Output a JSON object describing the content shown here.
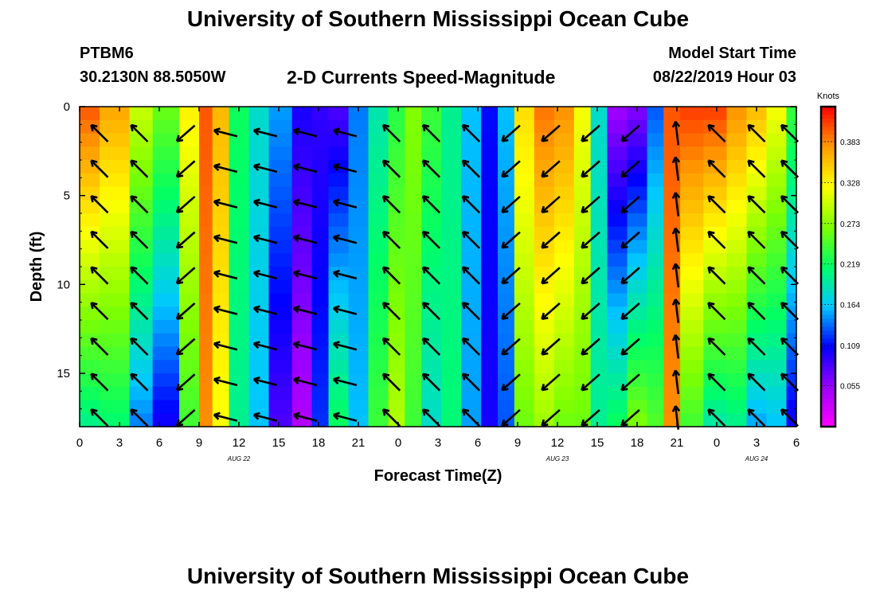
{
  "header": {
    "title": "University of Southern Mississippi Ocean Cube",
    "station": "PTBM6",
    "coords": "30.2130N 88.5050W",
    "subtitle": "2-D Currents Speed-Magnitude",
    "model_start_label": "Model Start Time",
    "model_start_value": "08/22/2019 Hour 03"
  },
  "footer": {
    "title": "University of Southern Mississippi Ocean Cube"
  },
  "chart_data": {
    "type": "heatmap",
    "title": "2-D Currents Speed-Magnitude",
    "xlabel": "Forecast Time(Z)",
    "ylabel": "Depth (ft)",
    "x_tick_labels": [
      "0",
      "3",
      "6",
      "9",
      "12",
      "15",
      "18",
      "21",
      "0",
      "3",
      "6",
      "9",
      "12",
      "15",
      "18",
      "21",
      "0",
      "3",
      "6"
    ],
    "x_range_hours": [
      0,
      54
    ],
    "date_labels": [
      {
        "label": "AUG 22",
        "hour": 12
      },
      {
        "label": "AUG 23",
        "hour": 36
      },
      {
        "label": "AUG 24",
        "hour": 51
      }
    ],
    "y_ticks": [
      0,
      5,
      10,
      15
    ],
    "ylim": [
      0,
      18
    ],
    "colorbar": {
      "label": "Knots",
      "ticks": [
        0.055,
        0.109,
        0.164,
        0.219,
        0.273,
        0.328,
        0.383
      ],
      "range": [
        0,
        0.43
      ],
      "colors": [
        "#ff00ff",
        "#9900ff",
        "#0000ff",
        "#00c8ff",
        "#00ff66",
        "#80ff00",
        "#ffff00",
        "#ff9900",
        "#ff0000"
      ]
    },
    "speed_profile_by_column": [
      {
        "hour": 0,
        "surface": 0.4,
        "bottom": 0.2
      },
      {
        "hour": 3,
        "surface": 0.37,
        "bottom": 0.21
      },
      {
        "hour": 4.5,
        "surface": 0.3,
        "bottom": 0.14
      },
      {
        "hour": 6.5,
        "surface": 0.26,
        "bottom": 0.1
      },
      {
        "hour": 8.5,
        "surface": 0.33,
        "bottom": 0.24
      },
      {
        "hour": 9.5,
        "surface": 0.4,
        "bottom": 0.38
      },
      {
        "hour": 10.5,
        "surface": 0.36,
        "bottom": 0.32
      },
      {
        "hour": 12,
        "surface": 0.22,
        "bottom": 0.2
      },
      {
        "hour": 13.5,
        "surface": 0.18,
        "bottom": 0.16
      },
      {
        "hour": 15,
        "surface": 0.15,
        "bottom": 0.08
      },
      {
        "hour": 17,
        "surface": 0.1,
        "bottom": 0.04
      },
      {
        "hour": 18,
        "surface": 0.09,
        "bottom": 0.12
      },
      {
        "hour": 19.5,
        "surface": 0.08,
        "bottom": 0.22
      },
      {
        "hour": 21,
        "surface": 0.14,
        "bottom": 0.16
      },
      {
        "hour": 22.5,
        "surface": 0.19,
        "bottom": 0.24
      },
      {
        "hour": 24,
        "surface": 0.23,
        "bottom": 0.29
      },
      {
        "hour": 25,
        "surface": 0.27,
        "bottom": 0.24
      },
      {
        "hour": 26.5,
        "surface": 0.24,
        "bottom": 0.18
      },
      {
        "hour": 28,
        "surface": 0.2,
        "bottom": 0.21
      },
      {
        "hour": 29.5,
        "surface": 0.16,
        "bottom": 0.15
      },
      {
        "hour": 31,
        "surface": 0.11,
        "bottom": 0.1
      },
      {
        "hour": 32,
        "surface": 0.16,
        "bottom": 0.13
      },
      {
        "hour": 33.5,
        "surface": 0.34,
        "bottom": 0.26
      },
      {
        "hour": 35,
        "surface": 0.39,
        "bottom": 0.28
      },
      {
        "hour": 36.5,
        "surface": 0.38,
        "bottom": 0.26
      },
      {
        "hour": 38,
        "surface": 0.32,
        "bottom": 0.26
      },
      {
        "hour": 39,
        "surface": 0.18,
        "bottom": 0.2
      },
      {
        "hour": 40.5,
        "surface": 0.05,
        "bottom": 0.22
      },
      {
        "hour": 42,
        "surface": 0.06,
        "bottom": 0.27
      },
      {
        "hour": 43.5,
        "surface": 0.13,
        "bottom": 0.25
      },
      {
        "hour": 44.5,
        "surface": 0.4,
        "bottom": 0.38
      },
      {
        "hour": 46,
        "surface": 0.41,
        "bottom": 0.24
      },
      {
        "hour": 48,
        "surface": 0.41,
        "bottom": 0.19
      },
      {
        "hour": 49.5,
        "surface": 0.38,
        "bottom": 0.2
      },
      {
        "hour": 51,
        "surface": 0.36,
        "bottom": 0.15
      },
      {
        "hour": 52.5,
        "surface": 0.32,
        "bottom": 0.16
      },
      {
        "hour": 54,
        "surface": 0.24,
        "bottom": 0.1
      }
    ],
    "vector_rows_depth_ft": [
      1.5,
      3.5,
      5.5,
      7.5,
      9.5,
      11.5,
      13.5,
      15.5,
      17.5
    ],
    "vector_directions_by_hour": [
      {
        "hour": 1.5,
        "dir": "upper-left"
      },
      {
        "hour": 4.5,
        "dir": "upper-left"
      },
      {
        "hour": 8,
        "dir": "down-left"
      },
      {
        "hour": 11,
        "dir": "left"
      },
      {
        "hour": 14,
        "dir": "left"
      },
      {
        "hour": 17,
        "dir": "left"
      },
      {
        "hour": 20,
        "dir": "left"
      },
      {
        "hour": 23.5,
        "dir": "upper-left"
      },
      {
        "hour": 26.5,
        "dir": "upper-left"
      },
      {
        "hour": 29.5,
        "dir": "upper-left"
      },
      {
        "hour": 32.5,
        "dir": "down-left"
      },
      {
        "hour": 35.5,
        "dir": "down-left"
      },
      {
        "hour": 38.5,
        "dir": "down-left"
      },
      {
        "hour": 41.5,
        "dir": "down-left"
      },
      {
        "hour": 45,
        "dir": "up"
      },
      {
        "hour": 48,
        "dir": "upper-left"
      },
      {
        "hour": 51,
        "dir": "upper-left"
      },
      {
        "hour": 53.5,
        "dir": "upper-left"
      }
    ]
  }
}
